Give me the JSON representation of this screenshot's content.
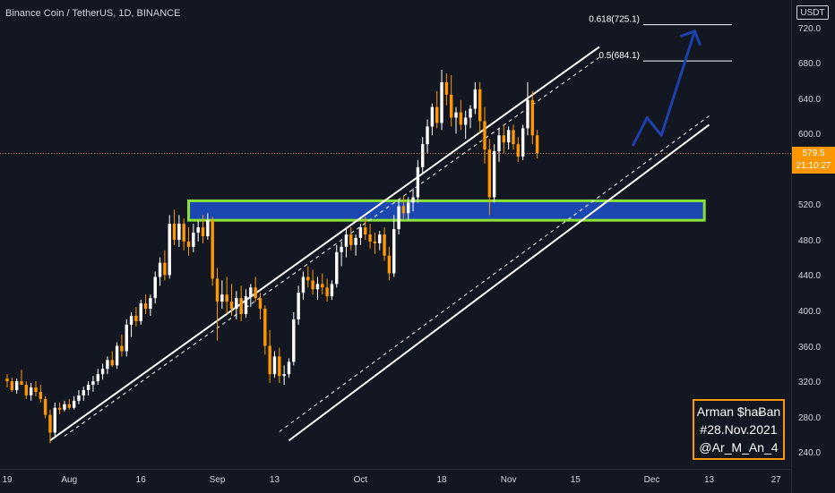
{
  "header": {
    "symbol_title": "Binance Coin / TetherUS, 1D, BINANCE",
    "currency": "USDT"
  },
  "price_tag": {
    "price": "579.5",
    "countdown": "21:10:27",
    "color": "#ff9800"
  },
  "signature": {
    "line1": "Arman $haɃan",
    "line2": "#28.Nov.2021",
    "line3": "@Ar_M_An_4",
    "border_color": "#ff9800"
  },
  "colors": {
    "background": "#131722",
    "candle_up": "#ffffff",
    "candle_down": "#ff9800",
    "zone_fill": "#1e4fc9",
    "zone_border": "#8ae234",
    "projection": "#1e3a8a",
    "channel_lines": "#ffffff"
  },
  "chart_data": {
    "type": "candlestick",
    "title": "Binance Coin / TetherUS, 1D, BINANCE",
    "y_unit": "USDT",
    "y_ticks": [
      240,
      280,
      320,
      360,
      400,
      440,
      480,
      520,
      560,
      600,
      640,
      680,
      720
    ],
    "y_tick_labels": [
      "240.0",
      "280.0",
      "320.0",
      "360.0",
      "400.0",
      "440.0",
      "480.0",
      "520.0",
      "560.0",
      "600.0",
      "640.0",
      "680.0",
      "720.0"
    ],
    "ylim": [
      223,
      753
    ],
    "x_ticks": [
      {
        "label": "19",
        "day": 0
      },
      {
        "label": "Aug",
        "day": 13
      },
      {
        "label": "16",
        "day": 28
      },
      {
        "label": "Sep",
        "day": 44
      },
      {
        "label": "13",
        "day": 56
      },
      {
        "label": "Oct",
        "day": 74
      },
      {
        "label": "18",
        "day": 91
      },
      {
        "label": "Nov",
        "day": 105
      },
      {
        "label": "15",
        "day": 119
      },
      {
        "label": "Dec",
        "day": 135
      },
      {
        "label": "13",
        "day": 147
      },
      {
        "label": "27",
        "day": 161
      }
    ],
    "last_price": 579.5,
    "fibonacci_levels": [
      {
        "label": "0.618(725.1)",
        "price": 725.1
      },
      {
        "label": "0.5(684.1)",
        "price": 684.1
      }
    ],
    "support_zone": {
      "low": 504,
      "high": 526
    },
    "candles": [
      [
        325,
        330,
        315,
        322
      ],
      [
        322,
        326,
        310,
        312
      ],
      [
        312,
        325,
        308,
        322
      ],
      [
        322,
        335,
        318,
        318
      ],
      [
        318,
        322,
        302,
        306
      ],
      [
        306,
        320,
        300,
        315
      ],
      [
        315,
        322,
        305,
        310
      ],
      [
        310,
        318,
        298,
        302
      ],
      [
        302,
        305,
        280,
        284
      ],
      [
        284,
        290,
        252,
        264
      ],
      [
        264,
        298,
        260,
        292
      ],
      [
        292,
        298,
        285,
        290
      ],
      [
        290,
        300,
        288,
        296
      ],
      [
        296,
        302,
        290,
        292
      ],
      [
        292,
        305,
        290,
        300
      ],
      [
        300,
        312,
        296,
        306
      ],
      [
        306,
        316,
        300,
        312
      ],
      [
        312,
        322,
        306,
        318
      ],
      [
        318,
        328,
        310,
        322
      ],
      [
        322,
        336,
        318,
        330
      ],
      [
        330,
        342,
        324,
        336
      ],
      [
        336,
        350,
        330,
        346
      ],
      [
        346,
        356,
        338,
        340
      ],
      [
        340,
        366,
        336,
        362
      ],
      [
        362,
        375,
        350,
        356
      ],
      [
        356,
        392,
        350,
        386
      ],
      [
        386,
        400,
        372,
        396
      ],
      [
        396,
        406,
        384,
        390
      ],
      [
        390,
        414,
        386,
        410
      ],
      [
        410,
        420,
        398,
        404
      ],
      [
        404,
        420,
        396,
        416
      ],
      [
        416,
        446,
        410,
        440
      ],
      [
        440,
        462,
        430,
        456
      ],
      [
        456,
        470,
        436,
        442
      ],
      [
        442,
        510,
        438,
        500
      ],
      [
        500,
        516,
        476,
        482
      ],
      [
        482,
        510,
        474,
        500
      ],
      [
        500,
        506,
        470,
        480
      ],
      [
        480,
        496,
        464,
        474
      ],
      [
        474,
        500,
        468,
        490
      ],
      [
        490,
        504,
        480,
        496
      ],
      [
        496,
        510,
        478,
        486
      ],
      [
        486,
        512,
        482,
        504
      ],
      [
        504,
        508,
        430,
        438
      ],
      [
        438,
        450,
        368,
        412
      ],
      [
        412,
        436,
        404,
        420
      ],
      [
        420,
        440,
        398,
        412
      ],
      [
        412,
        432,
        396,
        404
      ],
      [
        404,
        424,
        392,
        416
      ],
      [
        416,
        430,
        390,
        398
      ],
      [
        398,
        426,
        394,
        418
      ],
      [
        418,
        432,
        406,
        428
      ],
      [
        428,
        440,
        412,
        416
      ],
      [
        416,
        422,
        392,
        404
      ],
      [
        404,
        408,
        352,
        362
      ],
      [
        362,
        380,
        320,
        330
      ],
      [
        330,
        356,
        326,
        350
      ],
      [
        350,
        360,
        320,
        328
      ],
      [
        328,
        340,
        318,
        330
      ],
      [
        330,
        348,
        326,
        344
      ],
      [
        344,
        400,
        340,
        392
      ],
      [
        392,
        430,
        386,
        422
      ],
      [
        422,
        446,
        414,
        440
      ],
      [
        440,
        452,
        428,
        436
      ],
      [
        436,
        448,
        420,
        426
      ],
      [
        426,
        440,
        414,
        432
      ],
      [
        432,
        444,
        420,
        428
      ],
      [
        428,
        438,
        412,
        418
      ],
      [
        418,
        436,
        414,
        432
      ],
      [
        432,
        476,
        428,
        468
      ],
      [
        468,
        480,
        452,
        474
      ],
      [
        474,
        494,
        462,
        488
      ],
      [
        488,
        496,
        470,
        476
      ],
      [
        476,
        488,
        464,
        484
      ],
      [
        484,
        500,
        476,
        496
      ],
      [
        496,
        508,
        482,
        488
      ],
      [
        488,
        500,
        472,
        480
      ],
      [
        480,
        490,
        466,
        478
      ],
      [
        478,
        492,
        470,
        488
      ],
      [
        488,
        496,
        458,
        464
      ],
      [
        464,
        474,
        436,
        444
      ],
      [
        444,
        510,
        440,
        494
      ],
      [
        494,
        528,
        488,
        520
      ],
      [
        520,
        532,
        506,
        512
      ],
      [
        512,
        530,
        504,
        524
      ],
      [
        524,
        540,
        514,
        530
      ],
      [
        530,
        572,
        524,
        564
      ],
      [
        564,
        598,
        556,
        590
      ],
      [
        590,
        618,
        580,
        610
      ],
      [
        610,
        636,
        600,
        632
      ],
      [
        632,
        650,
        608,
        614
      ],
      [
        614,
        674,
        606,
        660
      ],
      [
        660,
        670,
        634,
        646
      ],
      [
        646,
        668,
        610,
        620
      ],
      [
        620,
        632,
        602,
        626
      ],
      [
        626,
        640,
        606,
        612
      ],
      [
        612,
        628,
        596,
        620
      ],
      [
        620,
        634,
        608,
        630
      ],
      [
        630,
        660,
        624,
        652
      ],
      [
        652,
        660,
        602,
        616
      ],
      [
        616,
        632,
        568,
        584
      ],
      [
        584,
        596,
        510,
        530
      ],
      [
        530,
        590,
        524,
        582
      ],
      [
        582,
        608,
        570,
        600
      ],
      [
        600,
        612,
        580,
        592
      ],
      [
        592,
        610,
        584,
        606
      ],
      [
        606,
        612,
        584,
        590
      ],
      [
        590,
        598,
        570,
        576
      ],
      [
        576,
        612,
        572,
        608
      ],
      [
        608,
        660,
        600,
        640
      ],
      [
        640,
        650,
        590,
        600
      ],
      [
        600,
        606,
        574,
        580
      ]
    ]
  }
}
